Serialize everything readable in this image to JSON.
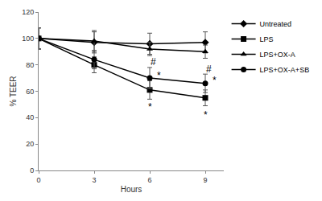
{
  "chart_data": {
    "type": "line",
    "x_label": "Hours",
    "y_label": "% TEER",
    "x": [
      0,
      3,
      6,
      9
    ],
    "xlim": [
      0,
      10
    ],
    "xticks": [
      0,
      3,
      6,
      9
    ],
    "ylim": [
      0,
      120
    ],
    "yticks": [
      0,
      20,
      40,
      60,
      80,
      100,
      120
    ],
    "grid": false,
    "legend": "right",
    "series": [
      {
        "name": "Untreated",
        "color": "#000000",
        "marker": "diamond",
        "values": [
          100,
          97,
          96,
          97
        ],
        "errors": [
          8,
          8,
          8,
          8
        ]
      },
      {
        "name": "LPS",
        "color": "#000000",
        "marker": "square",
        "values": [
          100,
          80,
          61,
          55
        ],
        "errors": [
          8,
          6,
          7,
          6
        ]
      },
      {
        "name": "LPS+OX-A",
        "color": "#000000",
        "marker": "triangle-up",
        "values": [
          100,
          98,
          92,
          90
        ],
        "errors": [
          8,
          8,
          5,
          5
        ]
      },
      {
        "name": "LPS+OX-A+SB",
        "color": "#000000",
        "marker": "circle",
        "values": [
          100,
          84,
          70,
          66
        ],
        "errors": [
          8,
          7,
          8,
          7
        ]
      }
    ],
    "annotations": [
      {
        "text": "#",
        "x": 6.2,
        "y": 82
      },
      {
        "text": "#",
        "x": 9.2,
        "y": 77
      },
      {
        "text": "*",
        "x": 6.5,
        "y": 72
      },
      {
        "text": "*",
        "x": 9.5,
        "y": 68
      },
      {
        "text": "*",
        "x": 6,
        "y": 48
      },
      {
        "text": "*",
        "x": 9,
        "y": 42
      }
    ]
  }
}
